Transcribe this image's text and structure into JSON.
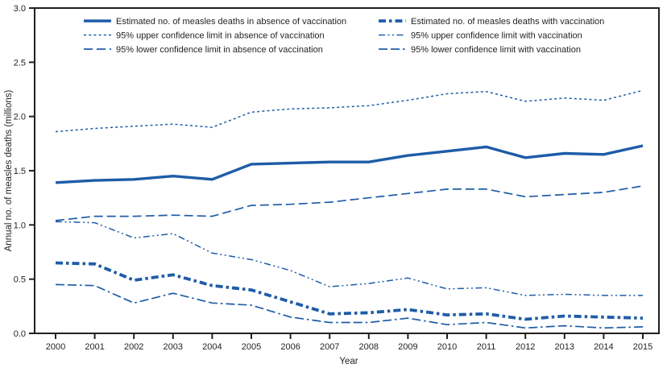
{
  "chart_data": {
    "type": "line",
    "title": "",
    "xlabel": "Year",
    "ylabel": "Annual no. of measles deaths (millions)",
    "ylim": [
      0.0,
      3.0
    ],
    "ytick_labels": [
      "0.0",
      "0.5",
      "1.0",
      "1.5",
      "2.0",
      "2.5",
      "3.0"
    ],
    "x": [
      2000,
      2001,
      2002,
      2003,
      2004,
      2005,
      2006,
      2007,
      2008,
      2009,
      2010,
      2011,
      2012,
      2013,
      2014,
      2015
    ],
    "xtick_labels": [
      "2000",
      "2001",
      "2002",
      "2003",
      "2004",
      "2005",
      "2006",
      "2007",
      "2008",
      "2009",
      "2010",
      "2011",
      "2012",
      "2013",
      "2014",
      "2015"
    ],
    "grid": "off",
    "legend_position": "top-inside-two-columns",
    "line_color": "#1e5ca8",
    "axis_color": "#231f20",
    "series": [
      {
        "key": "no_vacc_est",
        "label": "Estimated no. of measles deaths in absence of vaccination",
        "style": "solid-thick",
        "values": [
          1.39,
          1.41,
          1.42,
          1.45,
          1.42,
          1.56,
          1.57,
          1.58,
          1.58,
          1.64,
          1.68,
          1.72,
          1.62,
          1.66,
          1.65,
          1.73
        ]
      },
      {
        "key": "no_vacc_upper",
        "label": "95% upper confidence limit in absence of vaccination",
        "style": "dotted",
        "values": [
          1.86,
          1.89,
          1.91,
          1.93,
          1.9,
          2.04,
          2.07,
          2.08,
          2.1,
          2.15,
          2.21,
          2.23,
          2.14,
          2.17,
          2.15,
          2.24
        ]
      },
      {
        "key": "no_vacc_lower",
        "label": "95% lower confidence limit in absence of vaccination",
        "style": "long-dash",
        "values": [
          1.04,
          1.08,
          1.08,
          1.09,
          1.08,
          1.18,
          1.19,
          1.21,
          1.25,
          1.29,
          1.33,
          1.33,
          1.26,
          1.28,
          1.3,
          1.36
        ]
      },
      {
        "key": "vacc_est",
        "label": "Estimated no. of measles deaths with vaccination",
        "style": "thick-dash-dot",
        "values": [
          0.65,
          0.64,
          0.49,
          0.54,
          0.44,
          0.4,
          0.29,
          0.18,
          0.19,
          0.22,
          0.17,
          0.18,
          0.13,
          0.16,
          0.15,
          0.14
        ]
      },
      {
        "key": "vacc_upper",
        "label": "95% upper confidence limit with vaccination",
        "style": "dash-dot-dot",
        "values": [
          1.03,
          1.02,
          0.88,
          0.92,
          0.74,
          0.68,
          0.58,
          0.43,
          0.46,
          0.51,
          0.41,
          0.42,
          0.35,
          0.36,
          0.35,
          0.35
        ]
      },
      {
        "key": "vacc_lower",
        "label": "95% lower confidence limit with vaccination",
        "style": "long-dash-dash-dot",
        "values": [
          0.45,
          0.44,
          0.28,
          0.37,
          0.28,
          0.26,
          0.15,
          0.1,
          0.1,
          0.14,
          0.08,
          0.1,
          0.05,
          0.07,
          0.05,
          0.06
        ]
      }
    ]
  }
}
